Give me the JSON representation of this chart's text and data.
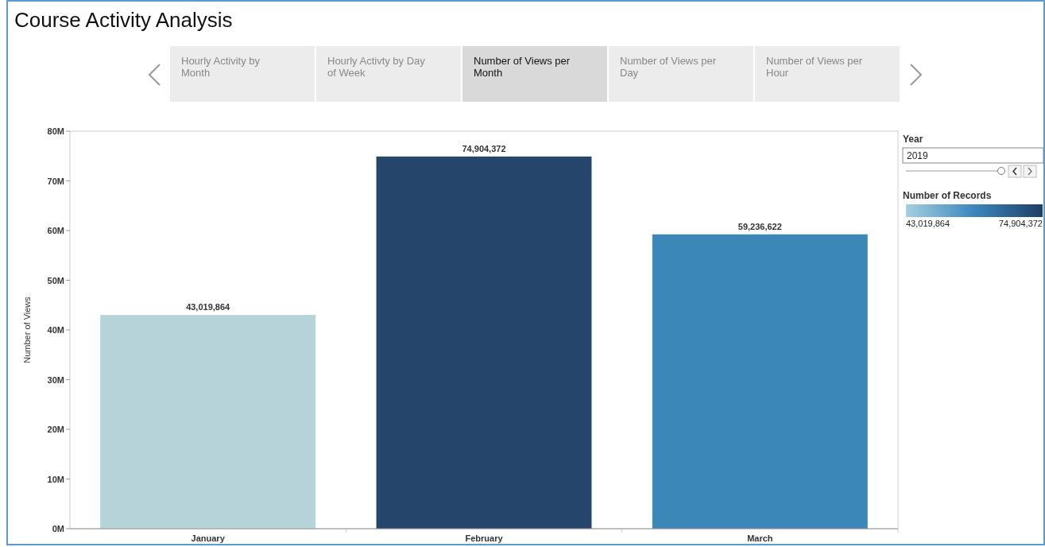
{
  "chart_data": {
    "type": "bar",
    "title": "Course Activity Analysis",
    "ylabel": "Number of Views",
    "categories": [
      "January",
      "February",
      "March"
    ],
    "values": [
      43019864,
      74904372,
      59236622
    ],
    "colors": [
      "#b5d3d8",
      "#26456b",
      "#3a87b8"
    ],
    "ylim": [
      0,
      80000000
    ],
    "yticks": [
      {
        "value": 0,
        "label": "0M"
      },
      {
        "value": 10000000,
        "label": "10M"
      },
      {
        "value": 20000000,
        "label": "20M"
      },
      {
        "value": 30000000,
        "label": "30M"
      },
      {
        "value": 40000000,
        "label": "40M"
      },
      {
        "value": 50000000,
        "label": "50M"
      },
      {
        "value": 60000000,
        "label": "60M"
      },
      {
        "value": 70000000,
        "label": "70M"
      },
      {
        "value": 80000000,
        "label": "80M"
      }
    ],
    "value_labels": [
      "43,019,864",
      "74,904,372",
      "59,236,622"
    ],
    "clabel": "Number of Records",
    "clim": [
      43019864,
      74904372
    ],
    "cticks": [
      {
        "value": 43019864,
        "label": "43,019,864"
      },
      {
        "value": 74904372,
        "label": "74,904,372"
      }
    ],
    "annotations": [
      "Hourly Activity by Month",
      "Hourly Activty by Day of Week",
      "Number of Views per Month",
      "Number of Views per Day",
      "Number of Views per Hour",
      "Year",
      "2019"
    ]
  }
}
